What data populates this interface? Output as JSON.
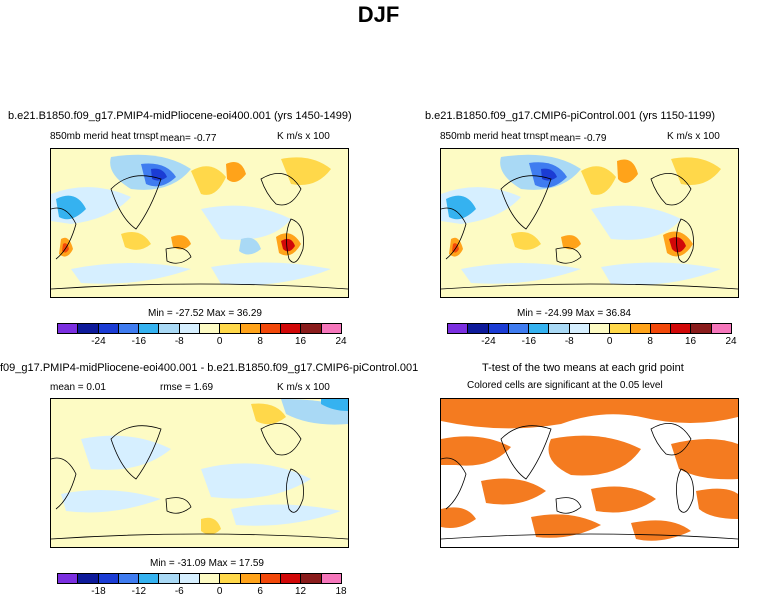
{
  "title": "DJF",
  "colors": {
    "palette": [
      "#7b2fe0",
      "#0d1a9a",
      "#1b3cd4",
      "#3f7cf0",
      "#35b2f0",
      "#a9d9f5",
      "#d6efff",
      "#fdfbc4",
      "#ffd84a",
      "#ffa31a",
      "#f2480a",
      "#d10808",
      "#8a1c1c",
      "#f576bb"
    ],
    "ttest": "#f47b20"
  },
  "panel1": {
    "title": "b.e21.B1850.f09_g17.PMIP4-midPliocene-eoi400.001 (yrs 1450-1499)",
    "variable": "850mb merid heat trnspt",
    "mean": "mean=   -0.77",
    "units": "K m/s x 100",
    "minmax": "Min = -27.52 Max =  36.29",
    "ticks": [
      "-24",
      "-16",
      "-8",
      "0",
      "8",
      "16",
      "24"
    ]
  },
  "panel2": {
    "title": "b.e21.B1850.f09_g17.CMIP6-piControl.001 (yrs 1150-1199)",
    "variable": "850mb merid heat trnspt",
    "mean": "mean=   -0.79",
    "units": "K m/s x 100",
    "minmax": "Min = -24.99 Max =  36.84",
    "ticks": [
      "-24",
      "-16",
      "-8",
      "0",
      "8",
      "16",
      "24"
    ]
  },
  "panel3": {
    "title": "f09_g17.PMIP4-midPliocene-eoi400.001 - b.e21.B1850.f09_g17.CMIP6-piControl.001",
    "mean": "mean =    0.01",
    "rmse": "rmse =    1.69",
    "units": "K m/s x 100",
    "minmax": "Min = -31.09 Max =  17.59",
    "ticks": [
      "-18",
      "-12",
      "-6",
      "0",
      "6",
      "12",
      "18"
    ]
  },
  "panel4": {
    "title": "T-test of the two means at each grid point",
    "subtitle": "Colored cells are significant at the 0.05 level"
  }
}
